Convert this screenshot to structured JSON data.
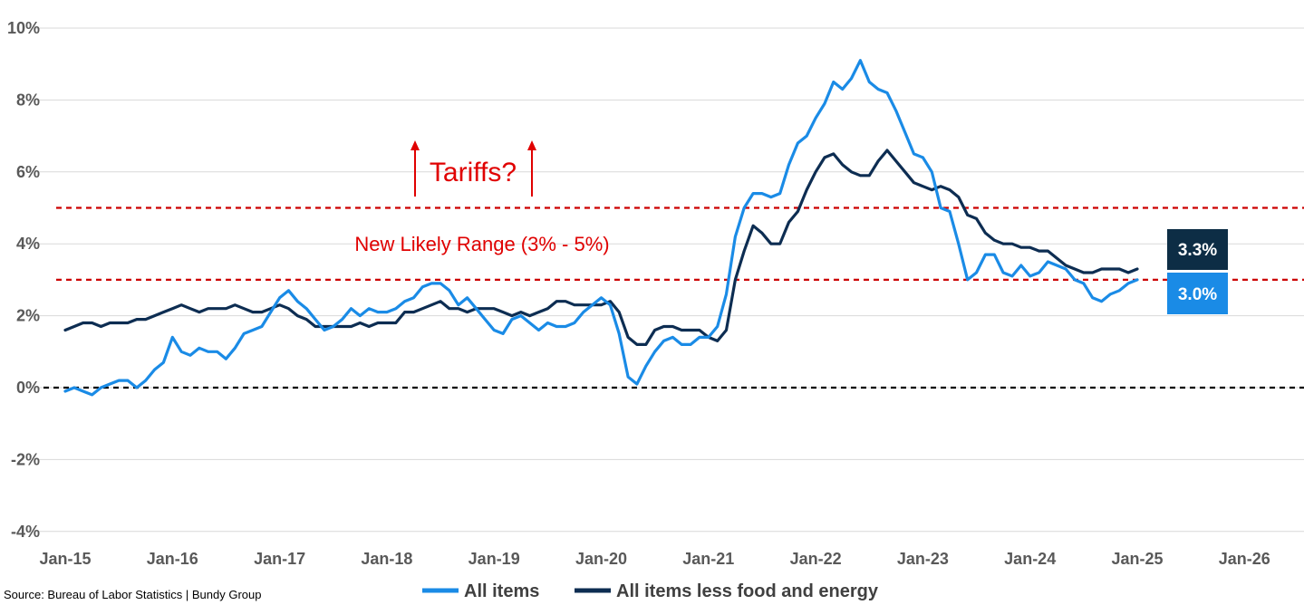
{
  "source": "Source: Bureau of Labor Statistics | Bundy Group",
  "annotations": {
    "tariffs": "Tariffs?",
    "range": "New Likely Range (3% - 5%)"
  },
  "badges": {
    "core": "3.3%",
    "all": "3.0%"
  },
  "colors": {
    "all_items": "#1a8be6",
    "core": "#0d2d52",
    "reference_red": "#cc0000",
    "zero_line": "#000000",
    "badge_core_bg": "#0d2d45",
    "badge_all_bg": "#1a8be6"
  },
  "chart_data": {
    "type": "line",
    "title": "",
    "xlabel": "",
    "ylabel": "",
    "x_start": "Jan-15",
    "x_step": "month",
    "xticks": [
      "Jan-15",
      "Jan-16",
      "Jan-17",
      "Jan-18",
      "Jan-19",
      "Jan-20",
      "Jan-21",
      "Jan-22",
      "Jan-23",
      "Jan-24",
      "Jan-25",
      "Jan-26"
    ],
    "xlim": [
      "Jan-15",
      "Jan-26"
    ],
    "yticks": [
      "10%",
      "8%",
      "6%",
      "4%",
      "2%",
      "0%",
      "-2%",
      "-4%"
    ],
    "ylim": [
      -4,
      10
    ],
    "grid": "horizontal",
    "legend_position": "bottom",
    "reference_lines": [
      {
        "y": 5,
        "style": "dashed",
        "color": "red"
      },
      {
        "y": 3,
        "style": "dashed",
        "color": "red"
      },
      {
        "y": 0,
        "style": "dashed",
        "color": "black"
      }
    ],
    "series": [
      {
        "name": "All items",
        "values": [
          -0.1,
          0.0,
          -0.1,
          -0.2,
          0.0,
          0.1,
          0.2,
          0.2,
          0.0,
          0.2,
          0.5,
          0.7,
          1.4,
          1.0,
          0.9,
          1.1,
          1.0,
          1.0,
          0.8,
          1.1,
          1.5,
          1.6,
          1.7,
          2.1,
          2.5,
          2.7,
          2.4,
          2.2,
          1.9,
          1.6,
          1.7,
          1.9,
          2.2,
          2.0,
          2.2,
          2.1,
          2.1,
          2.2,
          2.4,
          2.5,
          2.8,
          2.9,
          2.9,
          2.7,
          2.3,
          2.5,
          2.2,
          1.9,
          1.6,
          1.5,
          1.9,
          2.0,
          1.8,
          1.6,
          1.8,
          1.7,
          1.7,
          1.8,
          2.1,
          2.3,
          2.5,
          2.3,
          1.5,
          0.3,
          0.1,
          0.6,
          1.0,
          1.3,
          1.4,
          1.2,
          1.2,
          1.4,
          1.4,
          1.7,
          2.6,
          4.2,
          5.0,
          5.4,
          5.4,
          5.3,
          5.4,
          6.2,
          6.8,
          7.0,
          7.5,
          7.9,
          8.5,
          8.3,
          8.6,
          9.1,
          8.5,
          8.3,
          8.2,
          7.7,
          7.1,
          6.5,
          6.4,
          6.0,
          5.0,
          4.9,
          4.0,
          3.0,
          3.2,
          3.7,
          3.7,
          3.2,
          3.1,
          3.4,
          3.1,
          3.2,
          3.5,
          3.4,
          3.3,
          3.0,
          2.9,
          2.5,
          2.4,
          2.6,
          2.7,
          2.9,
          3.0
        ]
      },
      {
        "name": "All items less food and energy",
        "values": [
          1.6,
          1.7,
          1.8,
          1.8,
          1.7,
          1.8,
          1.8,
          1.8,
          1.9,
          1.9,
          2.0,
          2.1,
          2.2,
          2.3,
          2.2,
          2.1,
          2.2,
          2.2,
          2.2,
          2.3,
          2.2,
          2.1,
          2.1,
          2.2,
          2.3,
          2.2,
          2.0,
          1.9,
          1.7,
          1.7,
          1.7,
          1.7,
          1.7,
          1.8,
          1.7,
          1.8,
          1.8,
          1.8,
          2.1,
          2.1,
          2.2,
          2.3,
          2.4,
          2.2,
          2.2,
          2.1,
          2.2,
          2.2,
          2.2,
          2.1,
          2.0,
          2.1,
          2.0,
          2.1,
          2.2,
          2.4,
          2.4,
          2.3,
          2.3,
          2.3,
          2.3,
          2.4,
          2.1,
          1.4,
          1.2,
          1.2,
          1.6,
          1.7,
          1.7,
          1.6,
          1.6,
          1.6,
          1.4,
          1.3,
          1.6,
          3.0,
          3.8,
          4.5,
          4.3,
          4.0,
          4.0,
          4.6,
          4.9,
          5.5,
          6.0,
          6.4,
          6.5,
          6.2,
          6.0,
          5.9,
          5.9,
          6.3,
          6.6,
          6.3,
          6.0,
          5.7,
          5.6,
          5.5,
          5.6,
          5.5,
          5.3,
          4.8,
          4.7,
          4.3,
          4.1,
          4.0,
          4.0,
          3.9,
          3.9,
          3.8,
          3.8,
          3.6,
          3.4,
          3.3,
          3.2,
          3.2,
          3.3,
          3.3,
          3.3,
          3.2,
          3.3
        ]
      }
    ]
  }
}
